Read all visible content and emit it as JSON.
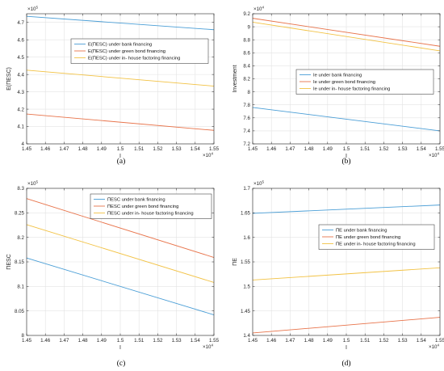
{
  "chart_data": [
    {
      "type": "line",
      "panel_label": "(a)",
      "xlabel": "I",
      "ylabel": "E(ΠESC)",
      "xlim": [
        14500,
        15500
      ],
      "ylim": [
        400000,
        475000
      ],
      "x_tick_values": [
        14500,
        14600,
        14700,
        14800,
        14900,
        15000,
        15100,
        15200,
        15300,
        15400,
        15500
      ],
      "x_tick_labels": [
        "1.45",
        "1.46",
        "1.47",
        "1.48",
        "1.49",
        "1.5",
        "1.51",
        "1.52",
        "1.53",
        "1.54",
        "1.55"
      ],
      "y_tick_values": [
        400000,
        410000,
        420000,
        430000,
        440000,
        450000,
        460000,
        470000
      ],
      "y_tick_labels": [
        "4",
        "4.1",
        "4.2",
        "4.3",
        "4.4",
        "4.5",
        "4.6",
        "4.7"
      ],
      "x_exponent": "×10",
      "x_exponent_power": "4",
      "y_exponent": "×10",
      "y_exponent_power": "5",
      "grid": true,
      "legend_position": "top-right",
      "series": [
        {
          "name": "E(ΠESC) under bank financing",
          "color": "#4a9ed6",
          "x": [
            14500,
            15500
          ],
          "y": [
            473500,
            465800
          ]
        },
        {
          "name": "E(ΠESC) under green bond financing",
          "color": "#e8734a",
          "x": [
            14500,
            15500
          ],
          "y": [
            417200,
            407800
          ]
        },
        {
          "name": "E(ΠESC) under in- house factoring financing",
          "color": "#f2c244",
          "x": [
            14500,
            15500
          ],
          "y": [
            442500,
            433300
          ]
        }
      ]
    },
    {
      "type": "line",
      "panel_label": "(b)",
      "xlabel": "I",
      "ylabel": "Investment",
      "xlim": [
        14500,
        15500
      ],
      "ylim": [
        72000,
        92000
      ],
      "x_tick_values": [
        14500,
        14600,
        14700,
        14800,
        14900,
        15000,
        15100,
        15200,
        15300,
        15400,
        15500
      ],
      "x_tick_labels": [
        "1.45",
        "1.46",
        "1.47",
        "1.48",
        "1.49",
        "1.5",
        "1.51",
        "1.52",
        "1.53",
        "1.54",
        "1.55"
      ],
      "y_tick_values": [
        72000,
        74000,
        76000,
        78000,
        80000,
        82000,
        84000,
        86000,
        88000,
        90000,
        92000
      ],
      "y_tick_labels": [
        "7.2",
        "7.4",
        "7.6",
        "7.8",
        "8",
        "8.2",
        "8.4",
        "8.6",
        "8.8",
        "9",
        "9.2"
      ],
      "x_exponent": "×10",
      "x_exponent_power": "4",
      "y_exponent": "×10",
      "y_exponent_power": "4",
      "grid": true,
      "legend_position": "middle-right",
      "series": [
        {
          "name": "Ie  under bank financing",
          "color": "#4a9ed6",
          "x": [
            14500,
            15500
          ],
          "y": [
            77600,
            74000
          ]
        },
        {
          "name": "Ie under green bond financing",
          "color": "#e8734a",
          "x": [
            14500,
            15500
          ],
          "y": [
            91300,
            87000
          ]
        },
        {
          "name": "Ie under in- house factoring financing",
          "color": "#f2c244",
          "x": [
            14500,
            15500
          ],
          "y": [
            90700,
            86300
          ]
        }
      ]
    },
    {
      "type": "line",
      "panel_label": "(c)",
      "xlabel": "I",
      "ylabel": "ΠESC",
      "xlim": [
        14500,
        15500
      ],
      "ylim": [
        800000,
        830000
      ],
      "x_tick_values": [
        14500,
        14600,
        14700,
        14800,
        14900,
        15000,
        15100,
        15200,
        15300,
        15400,
        15500
      ],
      "x_tick_labels": [
        "1.45",
        "1.46",
        "1.47",
        "1.48",
        "1.49",
        "1.5",
        "1.51",
        "1.52",
        "1.53",
        "1.54",
        "1.55"
      ],
      "y_tick_values": [
        800000,
        805000,
        810000,
        815000,
        820000,
        825000,
        830000
      ],
      "y_tick_labels": [
        "8",
        "8.05",
        "8.1",
        "8.15",
        "8.2",
        "8.25",
        "8.3"
      ],
      "x_exponent": "×10",
      "x_exponent_power": "4",
      "y_exponent": "×10",
      "y_exponent_power": "5",
      "grid": true,
      "legend_position": "top-right",
      "series": [
        {
          "name": "ΠESC under bank financing",
          "color": "#4a9ed6",
          "x": [
            14500,
            15500
          ],
          "y": [
            815800,
            804200
          ]
        },
        {
          "name": "ΠESC under green bond financing",
          "color": "#e8734a",
          "x": [
            14500,
            15500
          ],
          "y": [
            827900,
            815900
          ]
        },
        {
          "name": "ΠESC under in- house factoring financing",
          "color": "#f2c244",
          "x": [
            14500,
            15500
          ],
          "y": [
            822600,
            810800
          ]
        }
      ]
    },
    {
      "type": "line",
      "panel_label": "(d)",
      "xlabel": "I",
      "ylabel": "ΠE",
      "xlim": [
        14500,
        15500
      ],
      "ylim": [
        140000,
        170000
      ],
      "x_tick_values": [
        14500,
        14600,
        14700,
        14800,
        14900,
        15000,
        15100,
        15200,
        15300,
        15400,
        15500
      ],
      "x_tick_labels": [
        "1.45",
        "1.46",
        "1.47",
        "1.48",
        "1.49",
        "1.5",
        "1.51",
        "1.52",
        "1.53",
        "1.54",
        "1.55"
      ],
      "y_tick_values": [
        140000,
        145000,
        150000,
        155000,
        160000,
        165000,
        170000
      ],
      "y_tick_labels": [
        "1.4",
        "1.45",
        "1.5",
        "1.55",
        "1.6",
        "1.65",
        "1.7"
      ],
      "x_exponent": "×10",
      "x_exponent_power": "4",
      "y_exponent": "×10",
      "y_exponent_power": "5",
      "grid": true,
      "legend_position": "upper-middle-right",
      "series": [
        {
          "name": "ΠE under bank financing",
          "color": "#4a9ed6",
          "x": [
            14500,
            15500
          ],
          "y": [
            164900,
            166600
          ]
        },
        {
          "name": "ΠE under green bond financing",
          "color": "#e8734a",
          "x": [
            14500,
            15500
          ],
          "y": [
            140500,
            143700
          ]
        },
        {
          "name": "ΠE under in- house factoring financing",
          "color": "#f2c244",
          "x": [
            14500,
            15500
          ],
          "y": [
            151300,
            153800
          ]
        }
      ]
    }
  ]
}
